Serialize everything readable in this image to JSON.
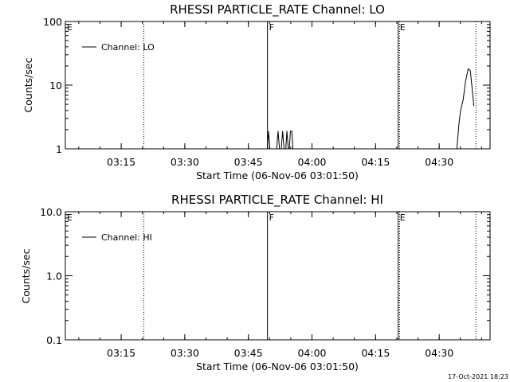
{
  "timestamp": "17-Oct-2021 18:23",
  "chart_data": [
    {
      "type": "line",
      "title": "RHESSI PARTICLE_RATE Channel: LO",
      "xlabel": "Start Time (06-Nov-06 03:01:50)",
      "ylabel": "Counts/sec",
      "yscale": "log",
      "xlim": [
        "03:01:50",
        "04:42:00"
      ],
      "ylim": [
        1,
        100
      ],
      "x_ticks": [
        "03:15",
        "03:30",
        "03:45",
        "04:00",
        "04:15",
        "04:30"
      ],
      "y_ticks": [
        "1",
        "10",
        "100"
      ],
      "legend": {
        "entries": [
          "Channel: LO"
        ],
        "placement": "top-left"
      },
      "markers": [
        {
          "time": "03:49:30",
          "style": "solid",
          "label": "F"
        },
        {
          "time": "04:20:20",
          "style": "solid",
          "label": "E"
        },
        {
          "time": "03:20:20",
          "style": "dotted",
          "label": ""
        },
        {
          "time": "04:20:40",
          "style": "dotted",
          "label": ""
        },
        {
          "time": "04:38:40",
          "style": "dotted",
          "label": ""
        }
      ],
      "edge_label": "E",
      "series": [
        {
          "name": "Channel: LO",
          "points": [
            [
              "03:49:30",
              1.0
            ],
            [
              "03:49:45",
              1.9
            ],
            [
              "03:50:05",
              1.0
            ],
            [
              "03:51:40",
              1.0
            ],
            [
              "03:52:00",
              1.9
            ],
            [
              "03:52:20",
              1.0
            ],
            [
              "03:52:45",
              1.0
            ],
            [
              "03:53:05",
              1.9
            ],
            [
              "03:53:25",
              1.0
            ],
            [
              "03:53:50",
              1.0
            ],
            [
              "03:54:05",
              1.9
            ],
            [
              "03:54:25",
              1.0
            ],
            [
              "03:54:40",
              1.0
            ],
            [
              "03:54:55",
              1.9
            ],
            [
              "03:55:15",
              1.9
            ],
            [
              "03:55:30",
              1.0
            ],
            [
              "04:34:10",
              1.0
            ],
            [
              "04:34:40",
              2.5
            ],
            [
              "04:35:00",
              3.8
            ],
            [
              "04:35:40",
              6.0
            ],
            [
              "04:36:10",
              11.0
            ],
            [
              "04:36:50",
              18.0
            ],
            [
              "04:37:20",
              17.0
            ],
            [
              "04:37:50",
              8.0
            ],
            [
              "04:38:10",
              4.7
            ]
          ]
        }
      ]
    },
    {
      "type": "line",
      "title": "RHESSI PARTICLE_RATE Channel: HI",
      "xlabel": "Start Time (06-Nov-06 03:01:50)",
      "ylabel": "Counts/sec",
      "yscale": "log",
      "xlim": [
        "03:01:50",
        "04:42:00"
      ],
      "ylim": [
        0.1,
        10
      ],
      "x_ticks": [
        "03:15",
        "03:30",
        "03:45",
        "04:00",
        "04:15",
        "04:30"
      ],
      "y_ticks": [
        "0.1",
        "1.0",
        "10.0"
      ],
      "legend": {
        "entries": [
          "Channel: HI"
        ],
        "placement": "top-left"
      },
      "markers": [
        {
          "time": "03:49:30",
          "style": "solid",
          "label": "F"
        },
        {
          "time": "04:20:20",
          "style": "solid",
          "label": "E"
        },
        {
          "time": "03:20:20",
          "style": "dotted",
          "label": ""
        },
        {
          "time": "04:20:40",
          "style": "dotted",
          "label": ""
        },
        {
          "time": "04:38:40",
          "style": "dotted",
          "label": ""
        }
      ],
      "edge_label": "E",
      "series": [
        {
          "name": "Channel: HI",
          "points": []
        }
      ]
    }
  ]
}
